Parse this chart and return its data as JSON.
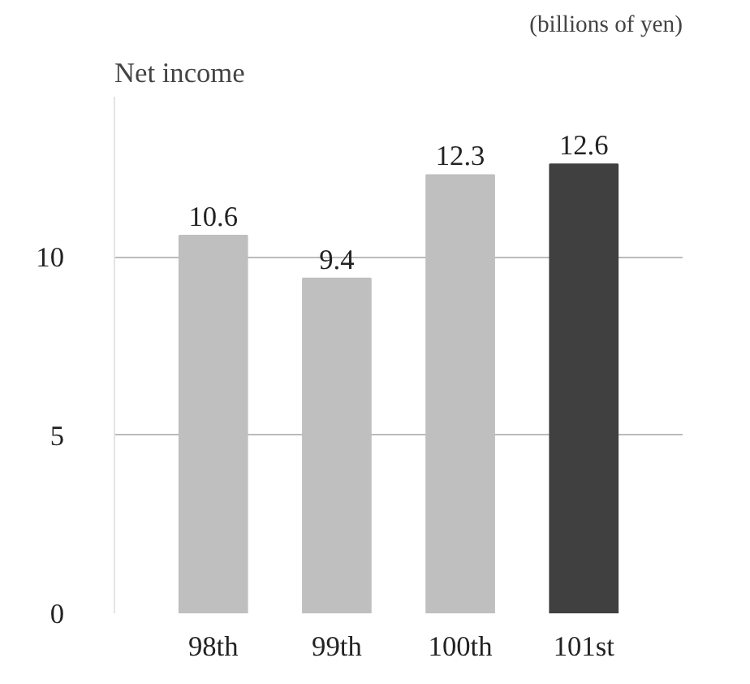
{
  "chart_data": {
    "type": "bar",
    "title": "Net income",
    "annotations": [
      "(billions of yen)"
    ],
    "categories": [
      "98th",
      "99th",
      "100th",
      "101st"
    ],
    "values": [
      10.6,
      9.4,
      12.3,
      12.6
    ],
    "colors": [
      "#bfbfbf",
      "#bfbfbf",
      "#bfbfbf",
      "#404040"
    ],
    "ylim": [
      0,
      14.5
    ],
    "yticks": [
      0,
      5,
      10
    ],
    "grid": "y",
    "data_labels": true
  }
}
